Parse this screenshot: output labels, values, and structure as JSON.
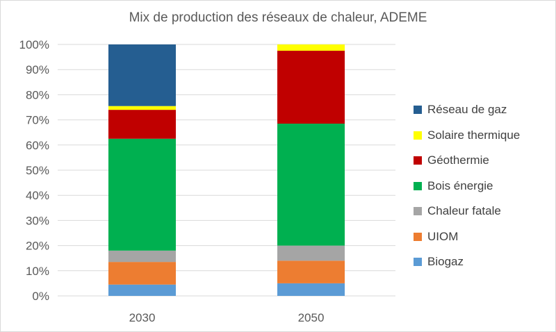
{
  "chart_data": {
    "type": "bar",
    "stacked": true,
    "title": "Mix de production des réseaux de chaleur, ADEME",
    "categories": [
      "2030",
      "2050"
    ],
    "y_ticks": [
      "0%",
      "10%",
      "20%",
      "30%",
      "40%",
      "50%",
      "60%",
      "70%",
      "80%",
      "90%",
      "100%"
    ],
    "ylim": [
      0,
      100
    ],
    "unit": "%",
    "grid": true,
    "legend_position": "right",
    "series": [
      {
        "name": "Biogaz",
        "color": "#5b9bd5",
        "values": [
          4.5,
          5.0
        ]
      },
      {
        "name": "UIOM",
        "color": "#ed7d31",
        "values": [
          9.0,
          9.0
        ]
      },
      {
        "name": "Chaleur fatale",
        "color": "#a5a5a5",
        "values": [
          4.5,
          6.0
        ]
      },
      {
        "name": "Bois énergie",
        "color": "#00b050",
        "values": [
          44.5,
          48.5
        ]
      },
      {
        "name": "Géothermie",
        "color": "#c00000",
        "values": [
          11.5,
          29.0
        ]
      },
      {
        "name": "Solaire thermique",
        "color": "#ffff00",
        "values": [
          1.5,
          2.5
        ]
      },
      {
        "name": "Réseau de gaz",
        "color": "#255e91",
        "values": [
          24.5,
          0.0
        ]
      }
    ]
  }
}
